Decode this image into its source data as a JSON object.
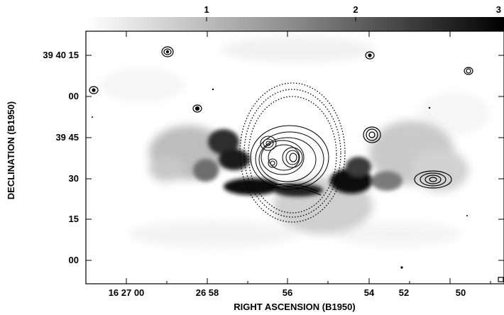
{
  "colorbar": {
    "ticks": [
      "1",
      "2",
      "3"
    ]
  },
  "axes": {
    "xlabel": "RIGHT ASCENSION (B1950)",
    "ylabel": "DECLINATION (B1950)",
    "x_ticks": [
      "16 27 00",
      "26 58",
      "56",
      "54",
      "52",
      "50"
    ],
    "y_ticks": [
      "39 40 15",
      "00",
      "39 45",
      "30",
      "15",
      "00"
    ]
  }
}
